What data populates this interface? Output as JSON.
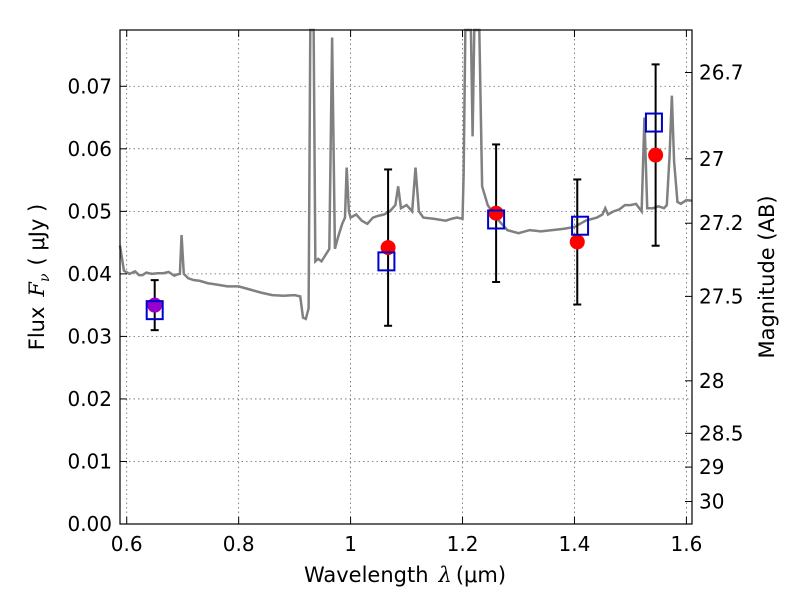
{
  "chart_data": {
    "type": "line",
    "xlabel": "Wavelength",
    "xlabel_symbol": "λ",
    "xlabel_unit": "(μm)",
    "ylabel": "Flux",
    "ylabel_symbol": "F",
    "ylabel_subscript": "ν",
    "ylabel_unit": "( μJy )",
    "y2label": "Magnitude (AB)",
    "xlim": [
      0.588,
      1.61
    ],
    "ylim": [
      0.0,
      0.079
    ],
    "grid": true,
    "x_ticks": [
      0.6,
      0.8,
      1.0,
      1.2,
      1.4,
      1.6
    ],
    "x_tick_labels": [
      "0.6",
      "0.8",
      "1",
      "1.2",
      "1.4",
      "1.6"
    ],
    "y_ticks": [
      0.0,
      0.01,
      0.02,
      0.03,
      0.04,
      0.05,
      0.06,
      0.07
    ],
    "y_tick_labels": [
      "0.00",
      "0.01",
      "0.02",
      "0.03",
      "0.04",
      "0.05",
      "0.06",
      "0.07"
    ],
    "y2_ticks": [
      {
        "label": "26.7",
        "flux": 0.0722
      },
      {
        "label": "27",
        "flux": 0.0584
      },
      {
        "label": "27.2",
        "flux": 0.0481
      },
      {
        "label": "27.5",
        "flux": 0.0364
      },
      {
        "label": "28",
        "flux": 0.0229
      },
      {
        "label": "28.5",
        "flux": 0.0145
      },
      {
        "label": "29",
        "flux": 0.0091
      },
      {
        "label": "30",
        "flux": 0.0036
      }
    ],
    "series": [
      {
        "kind": "line",
        "color": "#808080",
        "points": [
          [
            0.588,
            0.0445
          ],
          [
            0.595,
            0.0405
          ],
          [
            0.605,
            0.04
          ],
          [
            0.615,
            0.0404
          ],
          [
            0.622,
            0.0398
          ],
          [
            0.628,
            0.0398
          ],
          [
            0.635,
            0.0402
          ],
          [
            0.645,
            0.04
          ],
          [
            0.655,
            0.0401
          ],
          [
            0.665,
            0.0401
          ],
          [
            0.675,
            0.0403
          ],
          [
            0.685,
            0.0397
          ],
          [
            0.69,
            0.0399
          ],
          [
            0.695,
            0.04
          ],
          [
            0.698,
            0.0462
          ],
          [
            0.702,
            0.04
          ],
          [
            0.71,
            0.0393
          ],
          [
            0.72,
            0.039
          ],
          [
            0.73,
            0.0389
          ],
          [
            0.745,
            0.0385
          ],
          [
            0.76,
            0.0383
          ],
          [
            0.78,
            0.038
          ],
          [
            0.8,
            0.038
          ],
          [
            0.82,
            0.0375
          ],
          [
            0.84,
            0.037
          ],
          [
            0.86,
            0.0366
          ],
          [
            0.88,
            0.0365
          ],
          [
            0.9,
            0.0366
          ],
          [
            0.91,
            0.0364
          ],
          [
            0.915,
            0.033
          ],
          [
            0.92,
            0.0328
          ],
          [
            0.925,
            0.0345
          ],
          [
            0.928,
            0.08
          ],
          [
            0.934,
            0.08
          ],
          [
            0.937,
            0.042
          ],
          [
            0.942,
            0.0424
          ],
          [
            0.948,
            0.042
          ],
          [
            0.955,
            0.043
          ],
          [
            0.962,
            0.044
          ],
          [
            0.967,
            0.0778
          ],
          [
            0.972,
            0.044
          ],
          [
            0.978,
            0.046
          ],
          [
            0.985,
            0.048
          ],
          [
            0.99,
            0.049
          ],
          [
            0.993,
            0.057
          ],
          [
            0.997,
            0.05
          ],
          [
            1.0,
            0.049
          ],
          [
            1.01,
            0.0495
          ],
          [
            1.02,
            0.0485
          ],
          [
            1.03,
            0.048
          ],
          [
            1.04,
            0.049
          ],
          [
            1.05,
            0.0493
          ],
          [
            1.06,
            0.0495
          ],
          [
            1.07,
            0.05
          ],
          [
            1.08,
            0.051
          ],
          [
            1.085,
            0.054
          ],
          [
            1.09,
            0.0505
          ],
          [
            1.1,
            0.051
          ],
          [
            1.11,
            0.05
          ],
          [
            1.116,
            0.057
          ],
          [
            1.122,
            0.05
          ],
          [
            1.13,
            0.049
          ],
          [
            1.15,
            0.0488
          ],
          [
            1.17,
            0.0485
          ],
          [
            1.18,
            0.0488
          ],
          [
            1.19,
            0.049
          ],
          [
            1.2,
            0.0488
          ],
          [
            1.202,
            0.056
          ],
          [
            1.205,
            0.08
          ],
          [
            1.215,
            0.08
          ],
          [
            1.218,
            0.062
          ],
          [
            1.221,
            0.08
          ],
          [
            1.23,
            0.08
          ],
          [
            1.235,
            0.054
          ],
          [
            1.245,
            0.051
          ],
          [
            1.26,
            0.049
          ],
          [
            1.28,
            0.047
          ],
          [
            1.3,
            0.0465
          ],
          [
            1.32,
            0.047
          ],
          [
            1.34,
            0.0468
          ],
          [
            1.36,
            0.047
          ],
          [
            1.38,
            0.0472
          ],
          [
            1.4,
            0.0475
          ],
          [
            1.42,
            0.0485
          ],
          [
            1.44,
            0.049
          ],
          [
            1.45,
            0.0495
          ],
          [
            1.455,
            0.0505
          ],
          [
            1.46,
            0.0495
          ],
          [
            1.47,
            0.05
          ],
          [
            1.48,
            0.0503
          ],
          [
            1.49,
            0.051
          ],
          [
            1.5,
            0.051
          ],
          [
            1.51,
            0.0512
          ],
          [
            1.52,
            0.05
          ],
          [
            1.525,
            0.065
          ],
          [
            1.53,
            0.0505
          ],
          [
            1.54,
            0.0505
          ],
          [
            1.55,
            0.0508
          ],
          [
            1.56,
            0.0505
          ],
          [
            1.565,
            0.051
          ],
          [
            1.57,
            0.059
          ],
          [
            1.574,
            0.0685
          ],
          [
            1.578,
            0.058
          ],
          [
            1.584,
            0.0515
          ],
          [
            1.59,
            0.0512
          ],
          [
            1.6,
            0.0518
          ],
          [
            1.61,
            0.0517
          ]
        ]
      },
      {
        "kind": "markers-circle",
        "color": "#ff0000",
        "points": [
          {
            "x": 1.067,
            "y": 0.0442,
            "err": 0.0125
          },
          {
            "x": 1.26,
            "y": 0.0497,
            "err": 0.011
          },
          {
            "x": 1.405,
            "y": 0.0451,
            "err": 0.01
          },
          {
            "x": 1.545,
            "y": 0.059,
            "err": 0.0145
          }
        ]
      },
      {
        "kind": "markers-circle",
        "color": "#9900cc",
        "points": [
          {
            "x": 0.65,
            "y": 0.035,
            "err": 0.004
          }
        ]
      },
      {
        "kind": "markers-square-open",
        "color": "#0000cc",
        "points": [
          {
            "x": 0.65,
            "y": 0.0342
          },
          {
            "x": 1.064,
            "y": 0.042
          },
          {
            "x": 1.26,
            "y": 0.0487
          },
          {
            "x": 1.41,
            "y": 0.0477
          },
          {
            "x": 1.542,
            "y": 0.0642
          }
        ]
      }
    ]
  }
}
